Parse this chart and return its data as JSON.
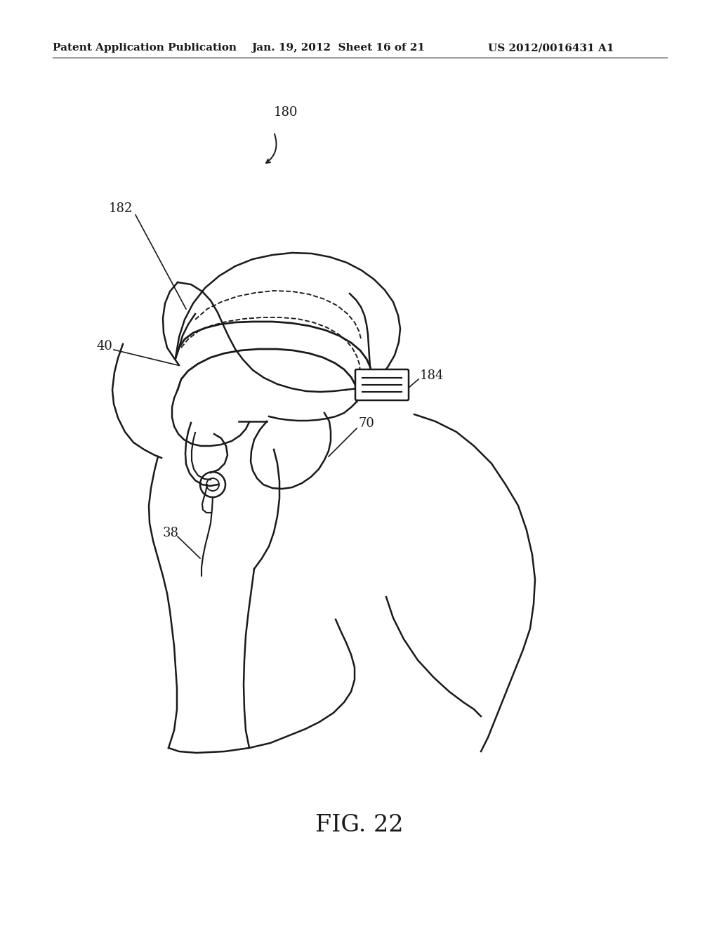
{
  "title": "FIG. 22",
  "header_left": "Patent Application Publication",
  "header_middle": "Jan. 19, 2012  Sheet 16 of 21",
  "header_right": "US 2012/0016431 A1",
  "bg_color": "#ffffff",
  "line_color": "#1a1a1a",
  "line_width": 1.8,
  "fig_label_fontsize": 24,
  "header_fontsize": 11,
  "label_fontsize": 13
}
